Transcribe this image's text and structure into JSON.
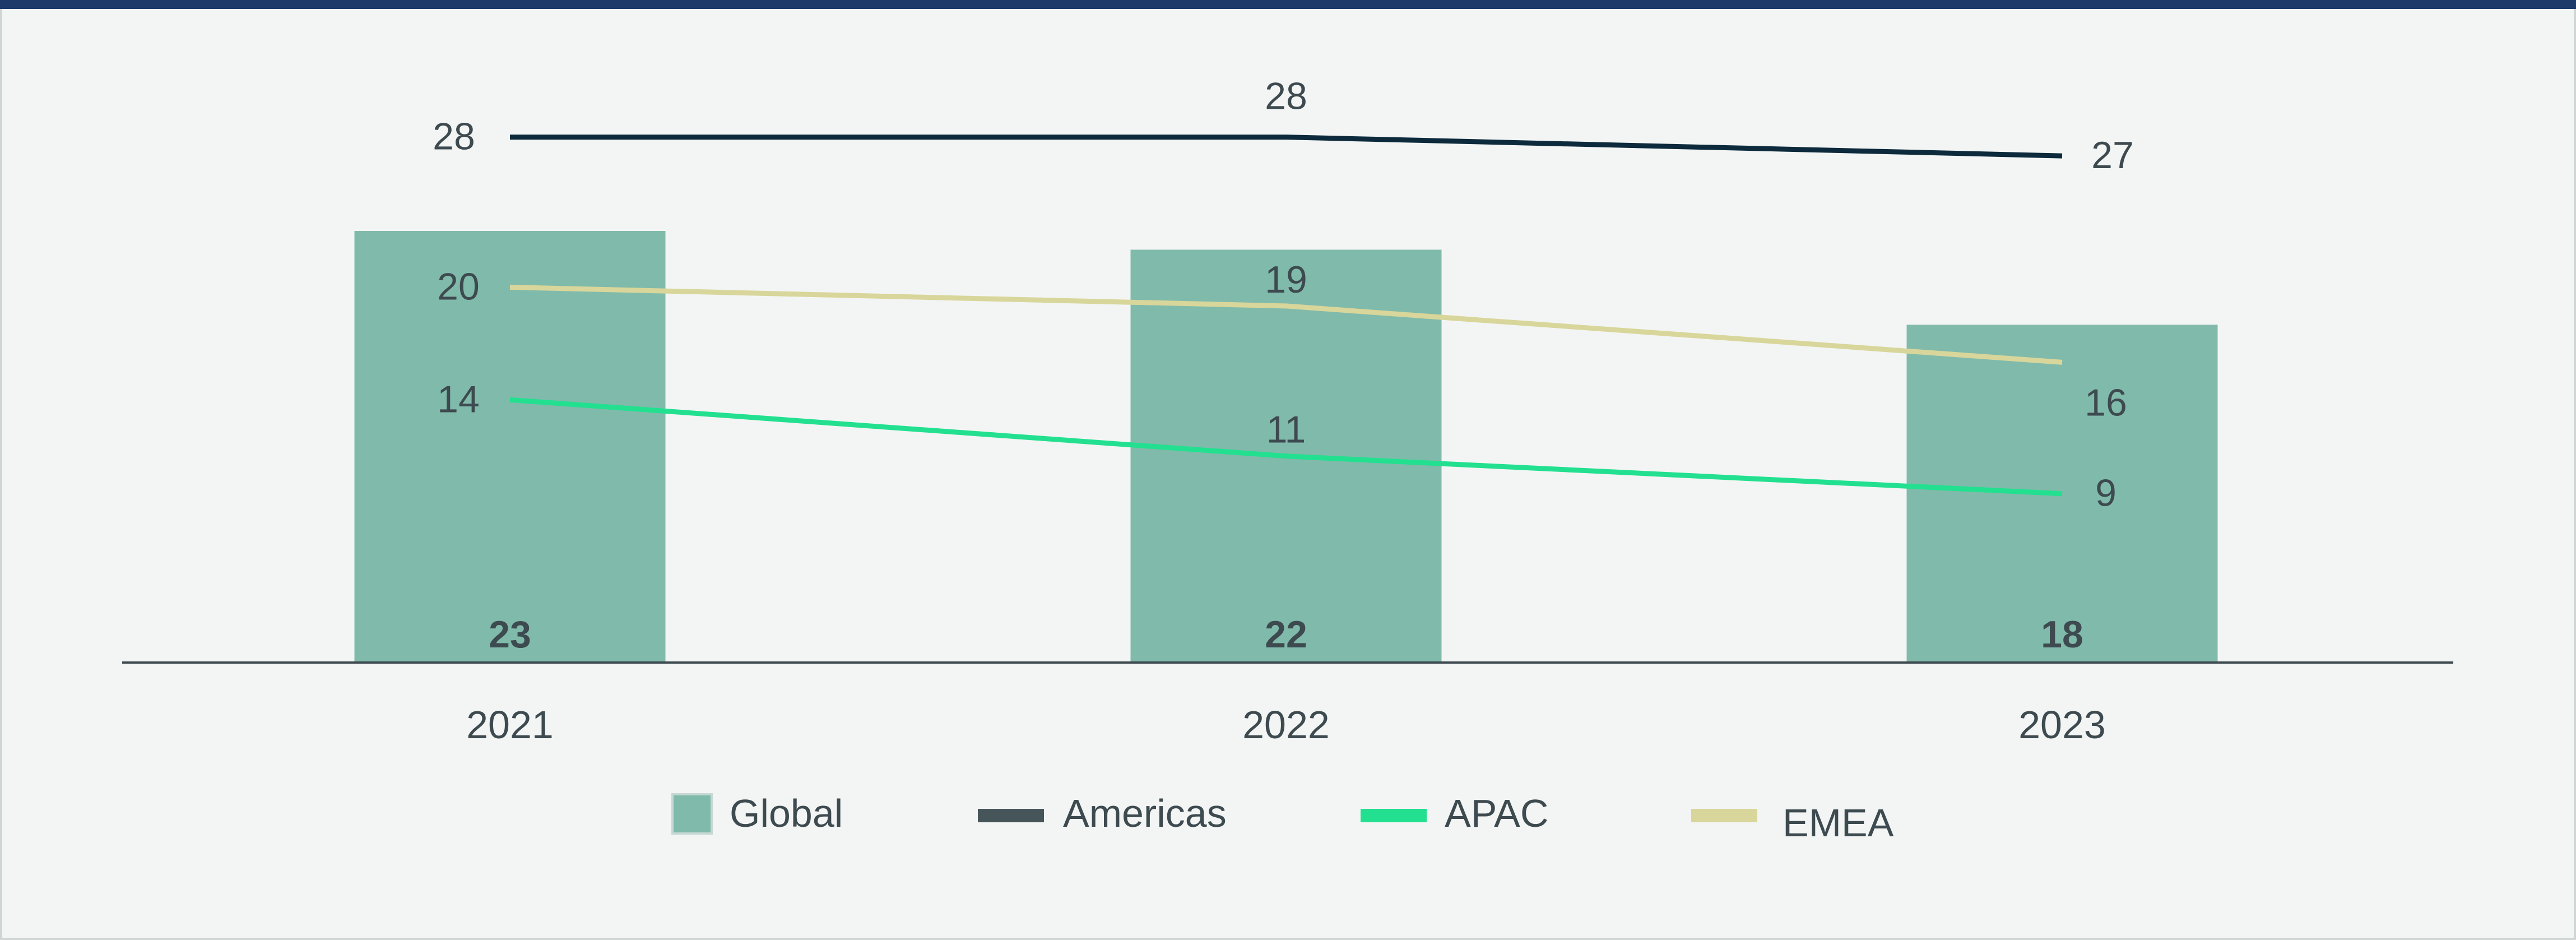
{
  "chart_data": {
    "type": "bar",
    "categories": [
      "2021",
      "2022",
      "2023"
    ],
    "bar_series": {
      "name": "Global",
      "values": [
        23,
        22,
        18
      ],
      "color": "#80baab"
    },
    "line_series": [
      {
        "name": "Americas",
        "values": [
          28,
          28,
          27
        ],
        "color": "#0c2a3c",
        "legend_color": "#46555a"
      },
      {
        "name": "APAC",
        "values": [
          14,
          11,
          9
        ],
        "color": "#22e08f",
        "legend_color": "#22e08f"
      },
      {
        "name": "EMEA",
        "values": [
          20,
          19,
          16
        ],
        "color": "#d8d69a",
        "legend_color": "#d8d69a"
      }
    ],
    "title": "",
    "xlabel": "",
    "ylabel": "",
    "ylim": [
      0,
      28
    ],
    "grid": false,
    "legend": "bottom"
  }
}
